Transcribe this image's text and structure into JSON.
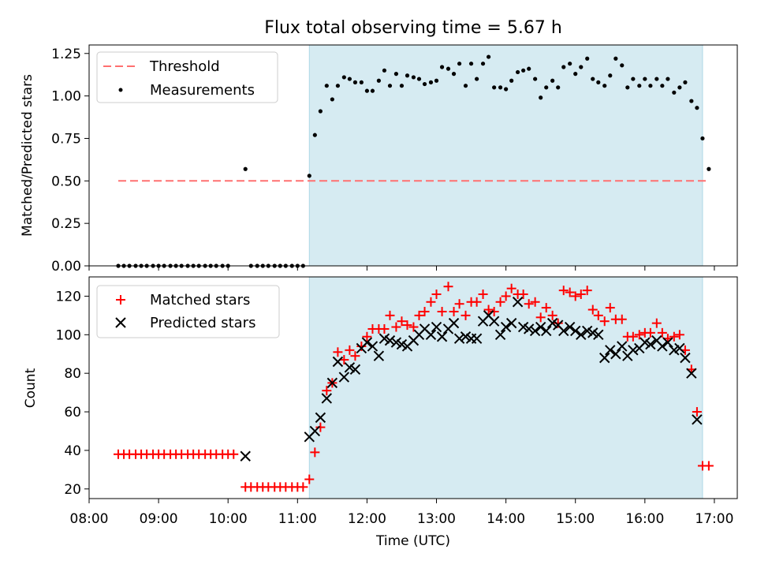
{
  "figure": {
    "title": "Flux total observing time = 5.67 h"
  },
  "chart_data": [
    {
      "type": "scatter",
      "panel": "top",
      "ylabel": "Matched/Predicted stars",
      "xlabel": "",
      "ylim": [
        0,
        1.3
      ],
      "yticks": [
        0.0,
        0.25,
        0.5,
        0.75,
        1.0,
        1.25
      ],
      "ytick_labels": [
        "0.00",
        "0.25",
        "0.50",
        "0.75",
        "1.00",
        "1.25"
      ],
      "xlim": [
        8.0,
        17.33
      ],
      "xticks": [
        8,
        9,
        10,
        11,
        12,
        13,
        14,
        15,
        16,
        17
      ],
      "x_units": "hours (UTC)",
      "observing_window": [
        11.17,
        16.83
      ],
      "legend_location": "upper left",
      "threshold": {
        "name": "Threshold",
        "value": 0.5,
        "x_range": [
          8.42,
          16.92
        ],
        "color": "#ff7070"
      },
      "series": [
        {
          "name": "Measurements",
          "color": "#000000",
          "x": [
            8.42,
            8.5,
            8.58,
            8.67,
            8.75,
            8.83,
            8.92,
            9.0,
            9.08,
            9.17,
            9.25,
            9.33,
            9.42,
            9.5,
            9.58,
            9.67,
            9.75,
            9.83,
            9.92,
            10.0,
            10.08,
            10.17,
            10.25,
            10.33,
            10.42,
            10.5,
            10.58,
            10.67,
            10.75,
            10.83,
            10.92,
            11.0,
            11.08,
            11.17,
            11.25,
            11.33,
            11.42,
            11.5,
            11.58,
            11.67,
            11.75,
            11.83,
            11.92,
            12.0,
            12.08,
            12.17,
            12.25,
            12.33,
            12.42,
            12.5,
            12.58,
            12.67,
            12.75,
            12.83,
            12.92,
            13.0,
            13.08,
            13.17,
            13.25,
            13.33,
            13.42,
            13.5,
            13.58,
            13.67,
            13.75,
            13.83,
            13.92,
            14.0,
            14.08,
            14.17,
            14.25,
            14.33,
            14.42,
            14.5,
            14.58,
            14.67,
            14.75,
            14.83,
            14.92,
            15.0,
            15.08,
            15.17,
            15.25,
            15.33,
            15.42,
            15.5,
            15.58,
            15.67,
            15.75,
            15.83,
            15.92,
            16.0,
            16.08,
            16.17,
            16.25,
            16.33,
            16.42,
            16.5,
            16.58,
            16.67,
            16.75,
            16.83,
            16.92
          ],
          "y": [
            0,
            0,
            0,
            0,
            0,
            0,
            0,
            0,
            0,
            0,
            0,
            0,
            0,
            0,
            0,
            0,
            0,
            0,
            0,
            0,
            null,
            null,
            0.57,
            0,
            0,
            0,
            0,
            0,
            0,
            0,
            0,
            0,
            0,
            0.53,
            0.77,
            0.91,
            1.06,
            0.98,
            1.06,
            1.11,
            1.1,
            1.08,
            1.08,
            1.03,
            1.03,
            1.09,
            1.15,
            1.06,
            1.13,
            1.06,
            1.12,
            1.11,
            1.1,
            1.07,
            1.08,
            1.09,
            1.17,
            1.16,
            1.13,
            1.19,
            1.06,
            1.19,
            1.1,
            1.19,
            1.23,
            1.05,
            1.05,
            1.04,
            1.09,
            1.14,
            1.15,
            1.16,
            1.1,
            0.99,
            1.05,
            1.09,
            1.05,
            1.17,
            1.19,
            1.13,
            1.17,
            1.22,
            1.1,
            1.08,
            1.06,
            1.12,
            1.22,
            1.18,
            1.05,
            1.1,
            1.06,
            1.1,
            1.06,
            1.1,
            1.06,
            1.1,
            1.02,
            1.05,
            1.08,
            0.97,
            0.93,
            0.75,
            0.57
          ]
        }
      ]
    },
    {
      "type": "scatter",
      "panel": "bottom",
      "ylabel": "Count",
      "xlabel": "Time (UTC)",
      "ylim": [
        15,
        130
      ],
      "yticks": [
        20,
        40,
        60,
        80,
        100,
        120
      ],
      "ytick_labels": [
        "20",
        "40",
        "60",
        "80",
        "100",
        "120"
      ],
      "xlim": [
        8.0,
        17.33
      ],
      "xticks": [
        8,
        9,
        10,
        11,
        12,
        13,
        14,
        15,
        16,
        17
      ],
      "xtick_labels": [
        "08:00",
        "09:00",
        "10:00",
        "11:00",
        "12:00",
        "13:00",
        "14:00",
        "15:00",
        "16:00",
        "17:00"
      ],
      "observing_window": [
        11.17,
        16.83
      ],
      "legend_location": "upper left",
      "series": [
        {
          "name": "Matched stars",
          "color": "#ff0000",
          "marker": "+",
          "x": [
            8.42,
            8.5,
            8.58,
            8.67,
            8.75,
            8.83,
            8.92,
            9.0,
            9.08,
            9.17,
            9.25,
            9.33,
            9.42,
            9.5,
            9.58,
            9.67,
            9.75,
            9.83,
            9.92,
            10.0,
            10.08,
            10.25,
            10.33,
            10.42,
            10.5,
            10.58,
            10.67,
            10.75,
            10.83,
            10.92,
            11.0,
            11.08,
            11.17,
            11.25,
            11.33,
            11.42,
            11.5,
            11.58,
            11.67,
            11.75,
            11.83,
            11.92,
            12.0,
            12.08,
            12.17,
            12.25,
            12.33,
            12.42,
            12.5,
            12.58,
            12.67,
            12.75,
            12.83,
            12.92,
            13.0,
            13.08,
            13.17,
            13.25,
            13.33,
            13.42,
            13.5,
            13.58,
            13.67,
            13.75,
            13.83,
            13.92,
            14.0,
            14.08,
            14.17,
            14.25,
            14.33,
            14.42,
            14.5,
            14.58,
            14.67,
            14.75,
            14.83,
            14.92,
            15.0,
            15.08,
            15.17,
            15.25,
            15.33,
            15.42,
            15.5,
            15.58,
            15.67,
            15.75,
            15.83,
            15.92,
            16.0,
            16.08,
            16.17,
            16.25,
            16.33,
            16.42,
            16.5,
            16.58,
            16.67,
            16.75,
            16.83,
            16.92
          ],
          "y": [
            38,
            38,
            38,
            38,
            38,
            38,
            38,
            38,
            38,
            38,
            38,
            38,
            38,
            38,
            38,
            38,
            38,
            38,
            38,
            38,
            38,
            21,
            21,
            21,
            21,
            21,
            21,
            21,
            21,
            21,
            21,
            21,
            25,
            39,
            52,
            71,
            75,
            91,
            87,
            92,
            89,
            94,
            99,
            103,
            103,
            103,
            110,
            104,
            107,
            105,
            104,
            110,
            112,
            117,
            121,
            112,
            125,
            112,
            116,
            110,
            117,
            117,
            121,
            113,
            112,
            117,
            120,
            124,
            121,
            121,
            116,
            117,
            109,
            114,
            110,
            106,
            123,
            122,
            120,
            121,
            123,
            113,
            110,
            107,
            114,
            108,
            108,
            99,
            99,
            100,
            101,
            101,
            106,
            101,
            98,
            99,
            100,
            92,
            82,
            60,
            32,
            32
          ]
        },
        {
          "name": "Predicted stars",
          "color": "#000000",
          "marker": "x",
          "x": [
            10.25,
            11.17,
            11.25,
            11.33,
            11.42,
            11.5,
            11.58,
            11.67,
            11.75,
            11.83,
            11.92,
            12.0,
            12.08,
            12.17,
            12.25,
            12.33,
            12.42,
            12.5,
            12.58,
            12.67,
            12.75,
            12.83,
            12.92,
            13.0,
            13.08,
            13.17,
            13.25,
            13.33,
            13.42,
            13.5,
            13.58,
            13.67,
            13.75,
            13.83,
            13.92,
            14.0,
            14.08,
            14.17,
            14.25,
            14.33,
            14.42,
            14.5,
            14.58,
            14.67,
            14.75,
            14.83,
            14.92,
            15.0,
            15.08,
            15.17,
            15.25,
            15.33,
            15.42,
            15.5,
            15.58,
            15.67,
            15.75,
            15.83,
            15.92,
            16.0,
            16.08,
            16.17,
            16.25,
            16.33,
            16.42,
            16.5,
            16.58,
            16.67,
            16.75,
            16.83
          ],
          "y": [
            37,
            47,
            50,
            57,
            67,
            75,
            86,
            78,
            83,
            82,
            93,
            96,
            94,
            89,
            98,
            97,
            96,
            95,
            94,
            97,
            100,
            103,
            100,
            104,
            99,
            103,
            106,
            98,
            99,
            98,
            98,
            107,
            110,
            107,
            100,
            104,
            106,
            117,
            104,
            103,
            102,
            104,
            102,
            106,
            105,
            102,
            104,
            102,
            100,
            102,
            101,
            100,
            88,
            92,
            90,
            94,
            89,
            92,
            93,
            96,
            95,
            97,
            94,
            96,
            92,
            93,
            88,
            80,
            56,
            null
          ]
        }
      ]
    }
  ]
}
